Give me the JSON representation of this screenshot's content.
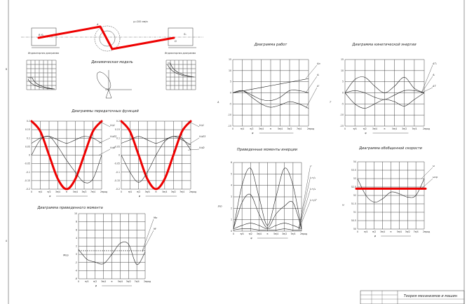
{
  "sheet": {
    "title_block": "Теория механизмов и машин",
    "frame_marks": [
      "B",
      "A"
    ]
  },
  "mechanism": {
    "title": "Динамическая модель",
    "indicator_left": "Индикаторная диаграмма",
    "indicator_right": "Индикаторная диаграмма",
    "labels": {
      "b": "B,S₁",
      "a": "A",
      "d": "D",
      "s5": "S₅",
      "scale": "μₗ=200 мм/м"
    }
  },
  "x_ticks": [
    "0",
    "π/4",
    "π/2",
    "3π/4",
    "π",
    "5π/4",
    "3π/2",
    "7π/4",
    "2π"
  ],
  "x_axis_label": "φ",
  "x_unit": "рад",
  "colors": {
    "highlight": "#e00000",
    "line": "#222222"
  },
  "chart_data": [
    {
      "id": "transfer-left",
      "title": "Диаграммы передаточных функций",
      "type": "line",
      "ylim": [
        -0.2,
        0.2
      ],
      "y_ticks": [
        "0.2",
        "0.15",
        "0.1",
        "0.05",
        "0",
        "-0.05",
        "-0.1",
        "-0.15",
        "-0.2"
      ],
      "series": [
        {
          "name": "Vq1",
          "highlight": true,
          "values": [
            0.2,
            0.14,
            0,
            -0.14,
            -0.2,
            -0.14,
            0,
            0.14,
            0.2
          ]
        },
        {
          "name": "VqS2",
          "values": [
            0.07,
            0.1,
            0.11,
            0.09,
            0.07,
            0.09,
            0.11,
            0.1,
            0.07
          ]
        },
        {
          "name": "VqB",
          "values": [
            0,
            0.09,
            0.11,
            0.05,
            -0.03,
            -0.1,
            -0.16,
            -0.14,
            0
          ]
        }
      ]
    },
    {
      "id": "transfer-right",
      "title": "",
      "type": "line",
      "ylim": [
        -0.2,
        0.2
      ],
      "y_ticks": [
        "0.2",
        "0.15",
        "0.1",
        "0.05",
        "0",
        "-0.05",
        "-0.1",
        "-0.15",
        "-0.2"
      ],
      "series": [
        {
          "name": "Vq1",
          "highlight": true,
          "values": [
            0.2,
            0.14,
            0,
            -0.14,
            -0.2,
            -0.14,
            0,
            0.14,
            0.2
          ]
        },
        {
          "name": "VqS3",
          "values": [
            0.07,
            0.09,
            0.11,
            0.09,
            0.07,
            0.09,
            0.11,
            0.09,
            0.06
          ]
        },
        {
          "name": "VqD",
          "values": [
            0,
            -0.1,
            -0.16,
            -0.1,
            0,
            0.08,
            0.11,
            0.1,
            0.03
          ]
        }
      ]
    },
    {
      "id": "moment",
      "title": "Диаграмма приведенного момента",
      "type": "line",
      "ylim": [
        -6,
        10
      ],
      "y_ticks": [
        "10",
        "8",
        "6",
        "4",
        "2",
        "0",
        "-2",
        "-4",
        "-6"
      ],
      "ylabel": "Mпр",
      "series": [
        {
          "name": "Mᴅ",
          "dashed": true,
          "values": [
            0.9,
            0.9,
            0.9,
            0.9,
            0.9,
            0.9,
            0.9,
            0.9,
            0.9
          ]
        },
        {
          "name": "Mᶜ",
          "values": [
            1.2,
            -1.2,
            -1.9,
            -2.3,
            0,
            2.7,
            2.5,
            -2.5,
            0.6
          ]
        }
      ]
    },
    {
      "id": "work",
      "title": "Диаграмма работ",
      "type": "line",
      "ylim": [
        -15,
        15
      ],
      "y_ticks": [
        "15",
        "10",
        "5",
        "0",
        "-5",
        "-10",
        "-15"
      ],
      "ylabel": "A",
      "series": [
        {
          "name": "Aᴅ",
          "values": [
            0,
            0.8,
            1.6,
            2.4,
            3.2,
            4,
            4.8,
            5.6,
            6.4
          ]
        },
        {
          "name": "Aᵢ",
          "values": [
            0,
            1,
            -1,
            -3,
            -3.5,
            -2,
            1,
            1,
            0
          ]
        },
        {
          "name": "Aᶜ",
          "values": [
            0,
            1,
            -2,
            -5,
            -6.5,
            -5.5,
            -4,
            -5,
            -7
          ]
        }
      ]
    },
    {
      "id": "kinetic",
      "title": "Диаграмма кинетической энергии",
      "type": "line",
      "ylim": [
        -15,
        15
      ],
      "y_ticks": [
        "15",
        "10",
        "5",
        "0",
        "-5",
        "-10",
        "-15"
      ],
      "ylabel": "T",
      "series": [
        {
          "name": "ΔT₁",
          "values": [
            0,
            6,
            7,
            3,
            0,
            3,
            7,
            2,
            0
          ]
        },
        {
          "name": "Aᵢ",
          "values": [
            0,
            1,
            0,
            -2,
            -3,
            -1,
            1,
            1,
            0
          ]
        },
        {
          "name": "ΔT",
          "values": [
            0,
            -5,
            -7,
            -5,
            -3,
            -4,
            -6,
            -3,
            0
          ]
        }
      ]
    },
    {
      "id": "inertia",
      "title": "Приведенные моменты инерции",
      "type": "line",
      "ylim": [
        0,
        6
      ],
      "y_ticks": [
        "6",
        "5",
        "4",
        "3",
        "2",
        "1",
        "0"
      ],
      "ylabel": "Jпр",
      "series": [
        {
          "name": "Jᴵᴵ",
          "values": [
            0.2,
            4,
            5.5,
            3,
            0.5,
            3,
            5.5,
            4,
            0.2
          ]
        },
        {
          "name": "J₃+J₅",
          "values": [
            0.2,
            2.5,
            3.2,
            1.5,
            0.3,
            1.5,
            2.2,
            2.5,
            0.2
          ]
        },
        {
          "name": "J₂+J₄",
          "values": [
            0.2,
            0.5,
            0.7,
            0.5,
            0.2,
            0.5,
            0.7,
            0.5,
            0.2
          ]
        },
        {
          "name": "J₂+J₄ᴮ",
          "values": [
            0.1,
            0.2,
            0.2,
            0.1,
            0.1,
            0.1,
            0.2,
            0.1,
            0.1
          ]
        }
      ]
    },
    {
      "id": "velocity",
      "title": "Диаграмма обобщенной скорости",
      "type": "line",
      "ylim": [
        50,
        54
      ],
      "y_ticks": [
        "54",
        "53.5",
        "53",
        "52.5",
        "52",
        "51.5",
        "51",
        "50.5",
        "50"
      ],
      "ylabel": "ω",
      "series": [
        {
          "name": "ω",
          "values": [
            53,
            52,
            51.6,
            51.8,
            52.2,
            52.1,
            51.9,
            52,
            53
          ]
        },
        {
          "name": "ωср",
          "highlight": true,
          "values": [
            52.4,
            52.4,
            52.4,
            52.4,
            52.4,
            52.4,
            52.4,
            52.4,
            52.4
          ]
        }
      ]
    }
  ]
}
